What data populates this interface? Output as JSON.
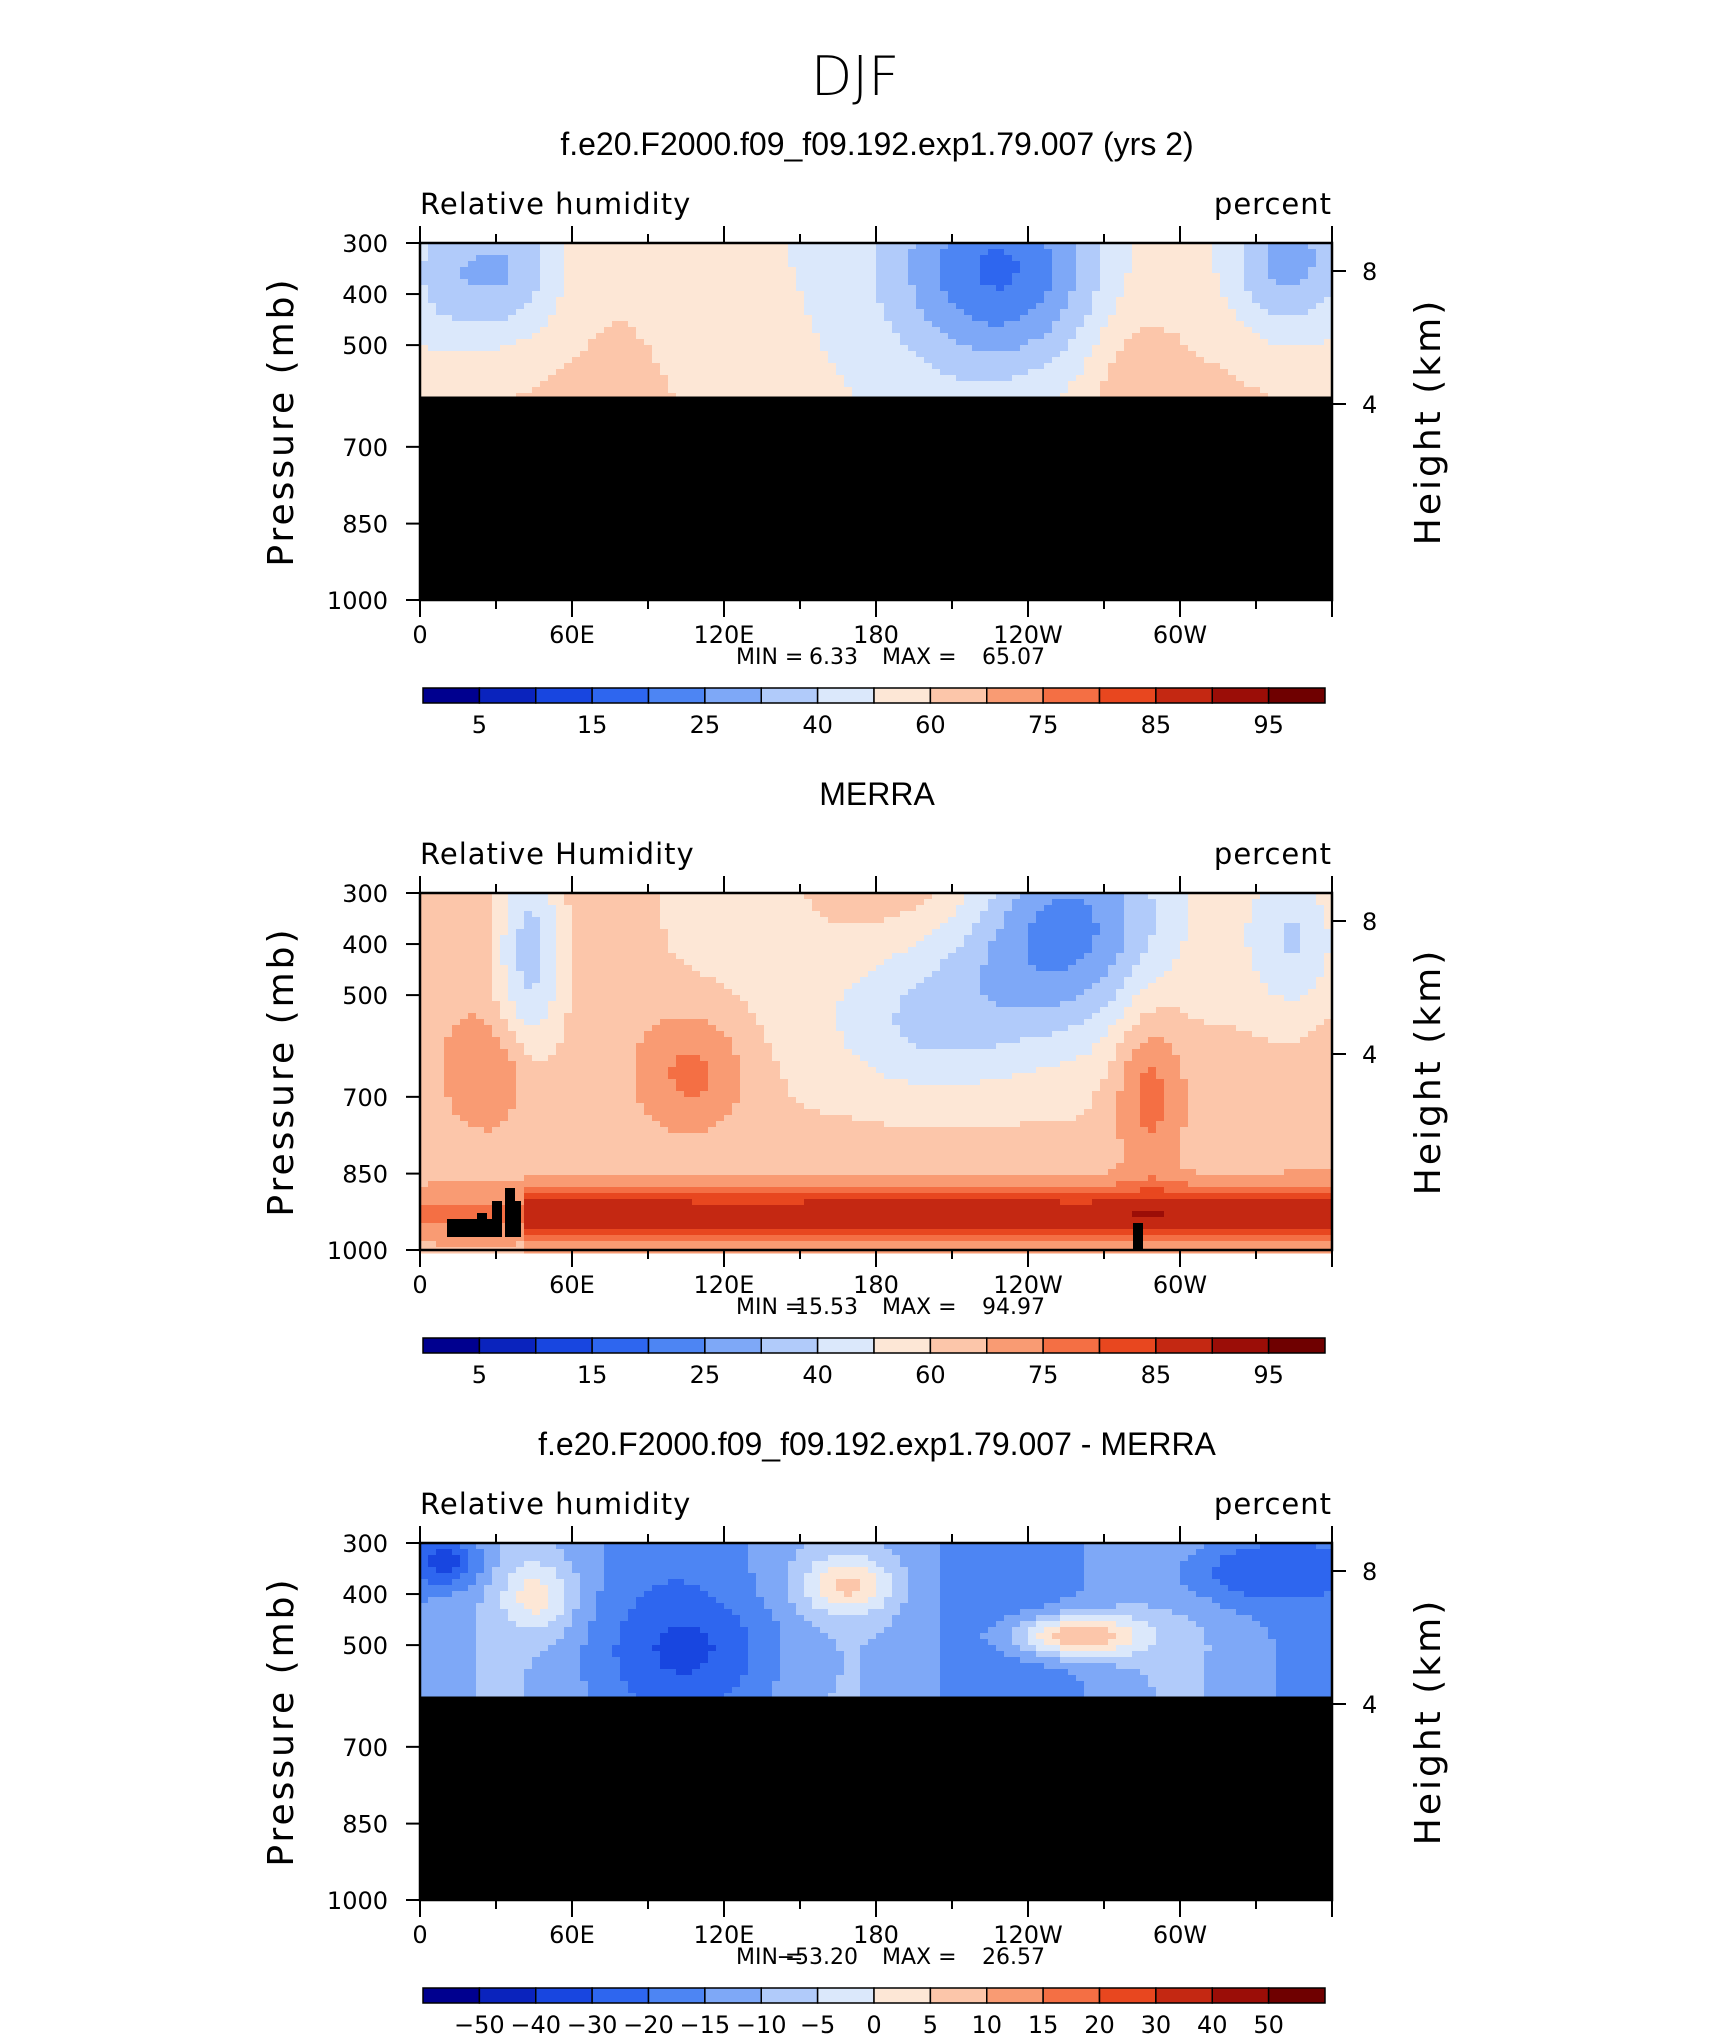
{
  "main_title": "DJF",
  "chart_data": [
    {
      "type": "heatmap",
      "title": "f.e20.F2000.f09_f09.192.exp1.79.007 (yrs 2)",
      "left_label": "Relative humidity",
      "right_label": "percent",
      "ylabel": "Pressure (mb)",
      "ylabel_right": "Height (km)",
      "x_ticks": [
        "0",
        "60E",
        "120E",
        "180",
        "120W",
        "60W"
      ],
      "y_ticks": [
        "300",
        "400",
        "500",
        "700",
        "850",
        "1000"
      ],
      "y_right_ticks": [
        "8",
        "4"
      ],
      "stats": {
        "min_label": "MIN =",
        "min": "6.33",
        "max_label": "MAX =",
        "max": "65.07"
      },
      "masked_below_mb": 600,
      "colorbar_labels": [
        "5",
        "15",
        "25",
        "40",
        "60",
        "75",
        "85",
        "95"
      ],
      "palette": "standard"
    },
    {
      "type": "heatmap",
      "title": "MERRA",
      "left_label": "Relative Humidity",
      "right_label": "percent",
      "ylabel": "Pressure (mb)",
      "ylabel_right": "Height (km)",
      "x_ticks": [
        "0",
        "60E",
        "120E",
        "180",
        "120W",
        "60W"
      ],
      "y_ticks": [
        "300",
        "400",
        "500",
        "700",
        "850",
        "1000"
      ],
      "y_right_ticks": [
        "8",
        "4"
      ],
      "stats": {
        "min_label": "MIN =",
        "min": "15.53",
        "max_label": "MAX =",
        "max": "94.97"
      },
      "masked_below_mb": null,
      "colorbar_labels": [
        "5",
        "15",
        "25",
        "40",
        "60",
        "75",
        "85",
        "95"
      ],
      "palette": "standard"
    },
    {
      "type": "heatmap",
      "title": "f.e20.F2000.f09_f09.192.exp1.79.007 - MERRA",
      "left_label": "Relative humidity",
      "right_label": "percent",
      "ylabel": "Pressure (mb)",
      "ylabel_right": "Height (km)",
      "x_ticks": [
        "0",
        "60E",
        "120E",
        "180",
        "120W",
        "60W"
      ],
      "y_ticks": [
        "300",
        "400",
        "500",
        "700",
        "850",
        "1000"
      ],
      "y_right_ticks": [
        "8",
        "4"
      ],
      "stats": {
        "min_label": "MIN =",
        "min": "−53.20",
        "max_label": "MAX =",
        "max": "26.57"
      },
      "masked_below_mb": 600,
      "colorbar_labels": [
        "−50",
        "−40",
        "−30",
        "−20",
        "−15",
        "−10",
        "−5",
        "0",
        "5",
        "10",
        "15",
        "20",
        "30",
        "40",
        "50"
      ],
      "palette": "diff"
    }
  ],
  "colors": {
    "palette_standard": [
      "#00008f",
      "#0a23bd",
      "#1846e0",
      "#2e66ef",
      "#4d85f3",
      "#7ea8f7",
      "#b1cbfa",
      "#dbe8fb",
      "#fde7d6",
      "#fcc6aa",
      "#f99b73",
      "#f46f44",
      "#e8471f",
      "#c42812",
      "#9b0d07",
      "#6f0000"
    ],
    "palette_diff": [
      "#00008f",
      "#0a23bd",
      "#1846e0",
      "#2e66ef",
      "#4d85f3",
      "#7ea8f7",
      "#b1cbfa",
      "#dbe8fb",
      "#fde7d6",
      "#fcc6aa",
      "#f99b73",
      "#f46f44",
      "#e8471f",
      "#c42812",
      "#9b0d07",
      "#6f0000"
    ],
    "mask": "#000000"
  }
}
